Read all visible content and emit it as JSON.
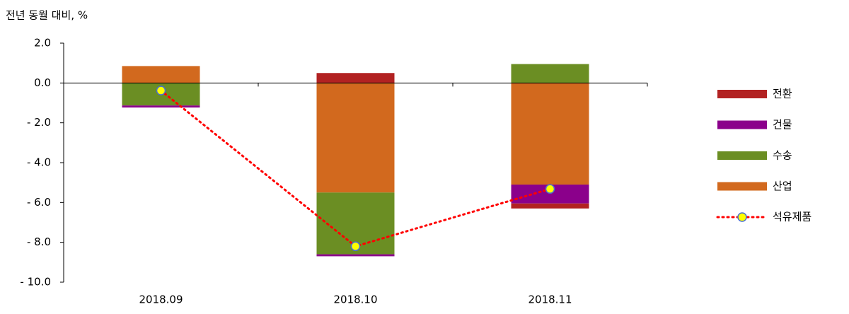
{
  "chart_data": {
    "type": "bar",
    "stacked": true,
    "y_label": "전년 동월 대비, %",
    "categories": [
      "2018.09",
      "2018.10",
      "2018.11"
    ],
    "series": [
      {
        "name": "산업",
        "color": "#d2691e",
        "values": [
          0.85,
          -5.5,
          -5.1
        ]
      },
      {
        "name": "수송",
        "color": "#6b8e23",
        "values": [
          -1.13,
          -3.1,
          0.95
        ]
      },
      {
        "name": "건물",
        "color": "#8b008b",
        "values": [
          -0.1,
          -0.1,
          -0.95
        ]
      },
      {
        "name": "전환",
        "color": "#b22222",
        "values": [
          0,
          0.5,
          -0.25
        ]
      },
      {
        "name": "석유제품",
        "type": "line",
        "color": "#ff0000",
        "marker_color": "#ffff00",
        "values": [
          -0.38,
          -8.2,
          -5.32
        ]
      }
    ],
    "ylim": [
      -10,
      2
    ],
    "yticks": [
      {
        "value": 2,
        "label": "2.0"
      },
      {
        "value": 0,
        "label": "0.0"
      },
      {
        "value": -2,
        "label": "- 2.0"
      },
      {
        "value": -4,
        "label": "- 4.0"
      },
      {
        "value": -6,
        "label": "- 6.0"
      },
      {
        "value": -8,
        "label": "- 8.0"
      },
      {
        "value": -10,
        "label": "- 10.0"
      }
    ],
    "legend": "right"
  }
}
